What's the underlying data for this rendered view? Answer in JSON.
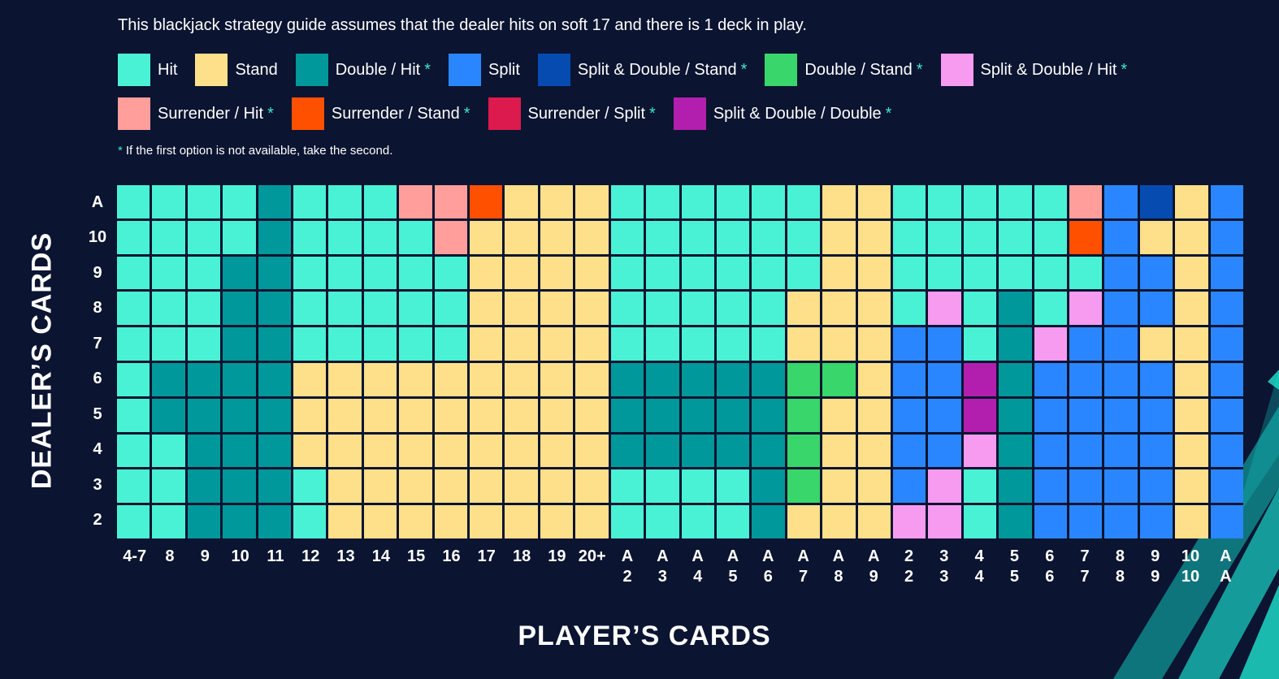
{
  "intro_text": "This blackjack strategy guide assumes that the dealer hits on soft 17 and there is 1 deck in play.",
  "legend": [
    {
      "code": "H",
      "label": "Hit",
      "star": false,
      "color": "#4af2d5"
    },
    {
      "code": "S",
      "label": "Stand",
      "star": false,
      "color": "#ffe08a"
    },
    {
      "code": "D",
      "label": "Double / Hit",
      "star": true,
      "color": "#00989a"
    },
    {
      "code": "P",
      "label": "Split",
      "star": false,
      "color": "#2a86ff"
    },
    {
      "code": "X",
      "label": "Split & Double / Stand",
      "star": true,
      "color": "#064bb0"
    },
    {
      "code": "G",
      "label": "Double / Stand",
      "star": true,
      "color": "#39d66b"
    },
    {
      "code": "K",
      "label": "Split & Double / Hit",
      "star": true,
      "color": "#f79bf0"
    },
    {
      "code": "R",
      "label": "Surrender / Hit",
      "star": true,
      "color": "#ff9e9a"
    },
    {
      "code": "O",
      "label": "Surrender / Stand",
      "star": true,
      "color": "#ff5000"
    },
    {
      "code": "L",
      "label": "Surrender / Split",
      "star": true,
      "color": "#dc1a4d"
    },
    {
      "code": "M",
      "label": "Split & Double / Double",
      "star": true,
      "color": "#b21fae"
    }
  ],
  "star_symbol": "*",
  "footnote": "If the first option is not available, take the second.",
  "y_axis_title": "DEALER’S CARDS",
  "x_axis_title": "PLAYER’S CARDS",
  "dealer_cards": [
    "A",
    "10",
    "9",
    "8",
    "7",
    "6",
    "5",
    "4",
    "3",
    "2"
  ],
  "player_cards": [
    [
      "4-7"
    ],
    [
      "8"
    ],
    [
      "9"
    ],
    [
      "10"
    ],
    [
      "11"
    ],
    [
      "12"
    ],
    [
      "13"
    ],
    [
      "14"
    ],
    [
      "15"
    ],
    [
      "16"
    ],
    [
      "17"
    ],
    [
      "18"
    ],
    [
      "19"
    ],
    [
      "20+"
    ],
    [
      "A",
      "2"
    ],
    [
      "A",
      "3"
    ],
    [
      "A",
      "4"
    ],
    [
      "A",
      "5"
    ],
    [
      "A",
      "6"
    ],
    [
      "A",
      "7"
    ],
    [
      "A",
      "8"
    ],
    [
      "A",
      "9"
    ],
    [
      "2",
      "2"
    ],
    [
      "3",
      "3"
    ],
    [
      "4",
      "4"
    ],
    [
      "5",
      "5"
    ],
    [
      "6",
      "6"
    ],
    [
      "7",
      "7"
    ],
    [
      "8",
      "8"
    ],
    [
      "9",
      "9"
    ],
    [
      "10",
      "10"
    ],
    [
      "A",
      "A"
    ]
  ],
  "strategy_rows": [
    "HHHHDHHHRROSSSHHHHHHSSHHHHHRPXSP",
    "HHHHDHHHHRSSSSHHHHHHSSHHHHHOPSSP",
    "HHHDDHHHHHSSSSHHHHHHSSHHHHHHPPSP",
    "HHHDDHHHHHSSSSHHHHHSSSHKHDHKPPSP",
    "HHHDDHHHHHSSSSHHHHHSSSPPHDKPPSSP",
    "HDDDDSSSSSSSSSDDDDDGGSPPMDPPPPSP",
    "HDDDDSSSSSSSSSDDDDDGSSPPMDPPPPSP",
    "HHDDDSSSSSSSSSDDDDDGSSPPKDPPPPSP",
    "HHDDDHSSSSSSSSHHHHDGSSPKHDPPPPSP",
    "HHDDDHSSSSSSSSHHHHDSSSKKHDPPPPSP"
  ]
}
